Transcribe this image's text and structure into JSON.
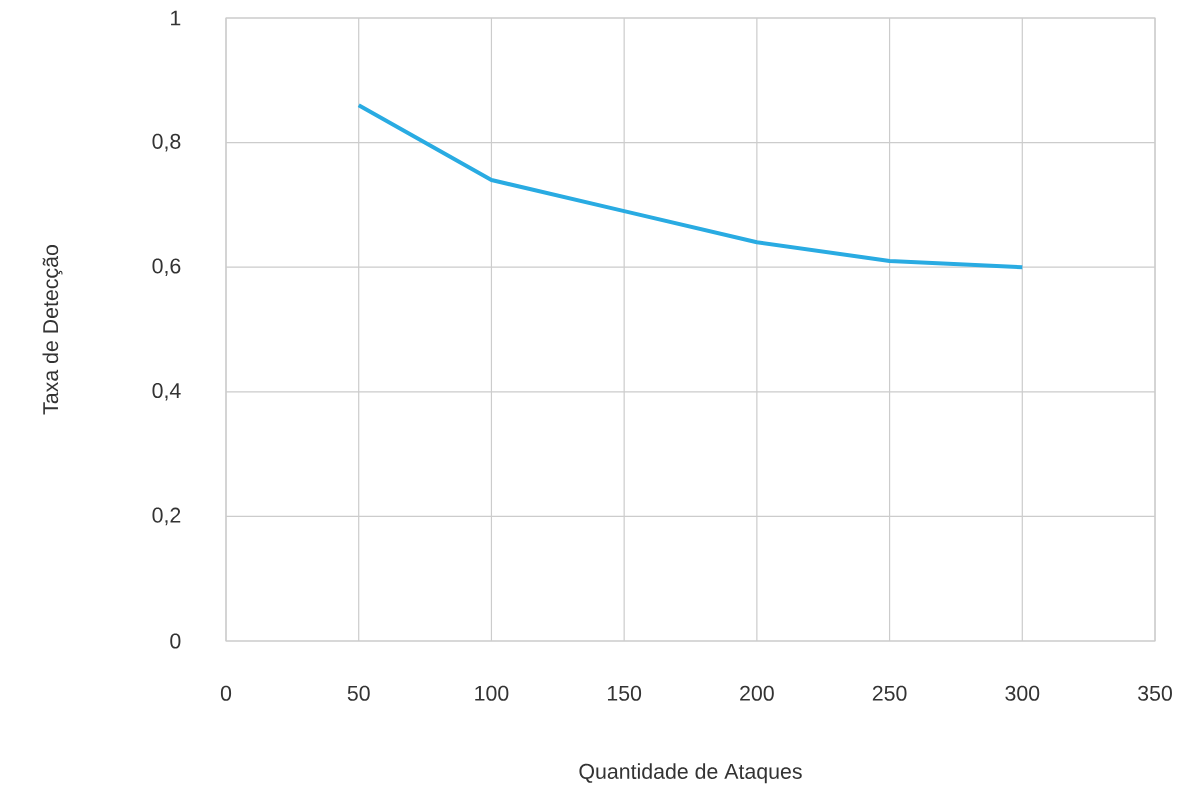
{
  "chart_data": {
    "type": "line",
    "xlabel": "Quantidade de Ataques",
    "ylabel": "Taxa de Detecção",
    "x": [
      50,
      100,
      150,
      200,
      250,
      300
    ],
    "series": [
      {
        "color": "#29abe2",
        "values": [
          0.86,
          0.74,
          0.69,
          0.64,
          0.61,
          0.6
        ]
      }
    ],
    "xlim": [
      0,
      350
    ],
    "xticks": [
      0,
      50,
      100,
      150,
      200,
      250,
      300,
      350
    ],
    "ylim": [
      0,
      1
    ],
    "yticks": [
      0,
      {
        "value": 0.2,
        "label": "0,2"
      },
      {
        "value": 0.4,
        "label": "0,4"
      },
      {
        "value": 0.6,
        "label": "0,6"
      },
      {
        "value": 0.8,
        "label": "0,8"
      },
      1
    ],
    "grid": true,
    "marker": "none",
    "line_style": "solid"
  }
}
